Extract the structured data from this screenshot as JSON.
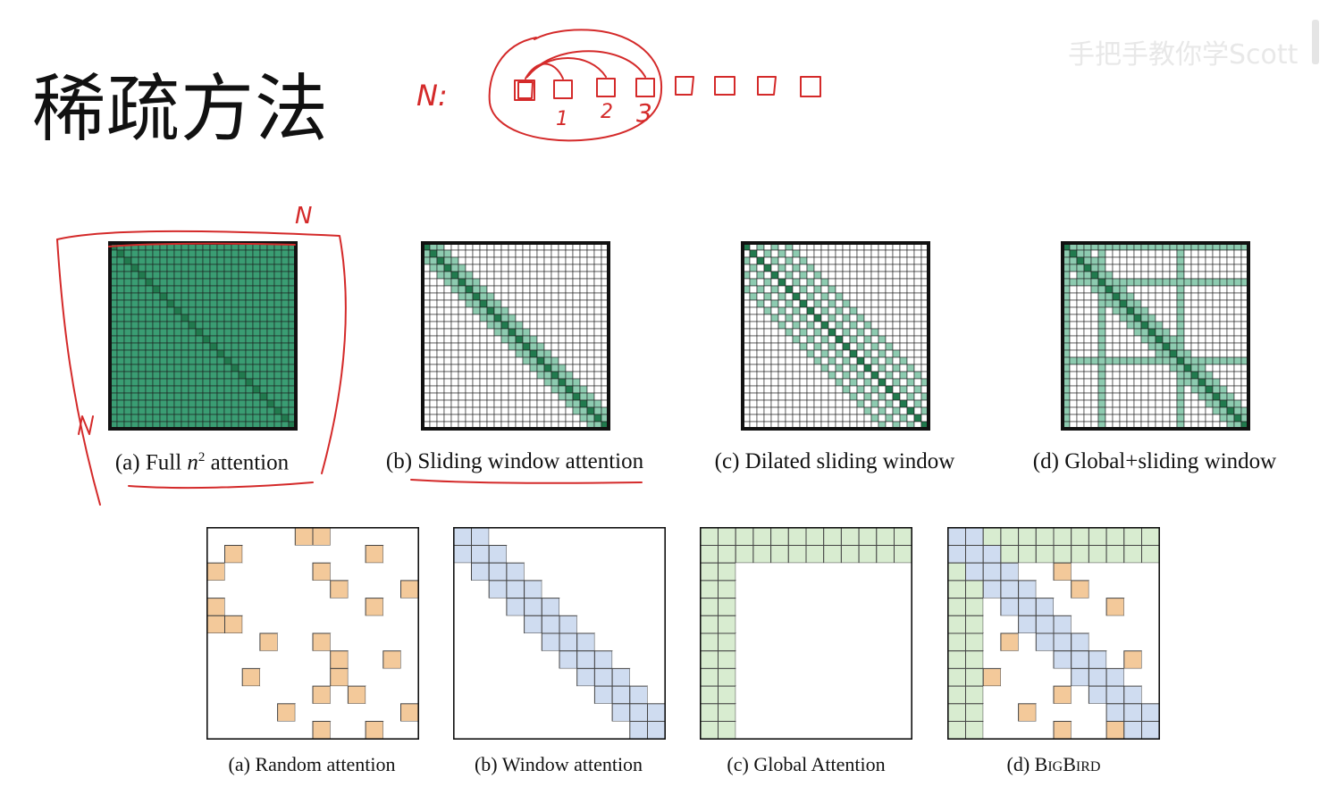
{
  "slide": {
    "title": "稀疏方法"
  },
  "watermark": {
    "text": "手把手教你学Scott"
  },
  "colors": {
    "green_full": "#3a9d73",
    "green_diag": "#217a4e",
    "green_light": "#8dcbb0",
    "orange": "#f3c99a",
    "blue": "#cfdcf0",
    "light_green": "#d8ecd0",
    "ink": "#d42a2a"
  },
  "top_row": {
    "captions": [
      {
        "prefix": "(a) Full ",
        "var": "n",
        "sup": "2",
        "suffix": " attention"
      },
      {
        "text": "(b) Sliding window attention"
      },
      {
        "text": "(c) Dilated sliding window"
      },
      {
        "text": "(d) Global+sliding window"
      }
    ]
  },
  "bottom_row": {
    "captions": [
      {
        "text": "(a) Random attention"
      },
      {
        "text": "(b) Window attention"
      },
      {
        "text": "(c) Global Attention"
      },
      {
        "prefix": "(d) ",
        "cap1": "B",
        "small1": "ig",
        "cap2": "B",
        "small2": "ird"
      }
    ]
  },
  "annotations": {
    "n_label": "N:",
    "sequence_numbers": [
      "1",
      "2",
      "3"
    ],
    "n_top": "N",
    "n_left": "N"
  }
}
